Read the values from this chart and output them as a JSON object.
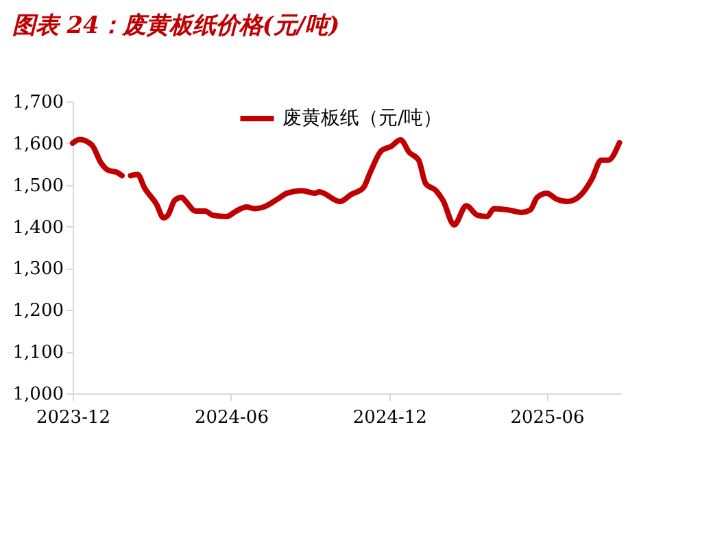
{
  "chart_data": {
    "type": "line",
    "title": "图表 24：废黄板纸价格(元/吨)",
    "x": [
      "2023-12-01",
      "2023-12-09",
      "2023-12-23",
      "2024-01-03",
      "2024-01-11",
      "2024-01-21",
      "2024-01-27",
      "2024-02-01",
      "2024-02-06",
      "2024-02-14",
      "2024-02-22",
      "2024-03-07",
      "2024-03-15",
      "2024-03-20",
      "2024-03-28",
      "2024-04-05",
      "2024-04-10",
      "2024-04-21",
      "2024-05-02",
      "2024-05-11",
      "2024-05-27",
      "2024-06-07",
      "2024-06-19",
      "2024-06-28",
      "2024-07-09",
      "2024-07-25",
      "2024-08-05",
      "2024-08-22",
      "2024-09-06",
      "2024-09-11",
      "2024-10-05",
      "2024-10-18",
      "2024-11-01",
      "2024-11-09",
      "2024-11-22",
      "2024-12-03",
      "2024-12-14",
      "2024-12-24",
      "2025-01-04",
      "2025-01-12",
      "2025-01-24",
      "2025-02-01",
      "2025-02-14",
      "2025-02-28",
      "2025-03-13",
      "2025-03-24",
      "2025-04-01",
      "2025-04-17",
      "2025-05-03",
      "2025-05-13",
      "2025-05-21",
      "2025-06-01",
      "2025-06-12",
      "2025-06-25",
      "2025-07-11",
      "2025-07-23",
      "2025-08-03",
      "2025-08-11",
      "2025-08-24"
    ],
    "series": [
      {
        "name": "废黄板纸（元/吨）",
        "color": "#c00000",
        "values": [
          1600,
          1609,
          1596,
          1552,
          1535,
          1530,
          1522,
          null,
          1522,
          1525,
          1493,
          1453,
          1421,
          1427,
          1463,
          1470,
          1460,
          1437,
          1437,
          1427,
          1424,
          1437,
          1447,
          1443,
          1447,
          1466,
          1480,
          1486,
          1480,
          1483,
          1460,
          1477,
          1493,
          1530,
          1582,
          1592,
          1608,
          1578,
          1559,
          1503,
          1486,
          1463,
          1404,
          1450,
          1427,
          1424,
          1443,
          1440,
          1434,
          1440,
          1470,
          1480,
          1466,
          1460,
          1477,
          1513,
          1559,
          1559,
          1601
        ]
      }
    ],
    "xlim": [
      "2023-12-01",
      "2025-08-26"
    ],
    "xticks": [
      {
        "value": "2023-12-01",
        "label": "2023-12"
      },
      {
        "value": "2024-06-01",
        "label": "2024-06"
      },
      {
        "value": "2024-12-01",
        "label": "2024-12"
      },
      {
        "value": "2025-06-01",
        "label": "2025-06"
      }
    ],
    "ylim": [
      1000,
      1700
    ],
    "yticks": [
      {
        "value": 1000,
        "label": "1,000"
      },
      {
        "value": 1100,
        "label": "1,100"
      },
      {
        "value": 1200,
        "label": "1,200"
      },
      {
        "value": 1300,
        "label": "1,300"
      },
      {
        "value": 1400,
        "label": "1,400"
      },
      {
        "value": 1500,
        "label": "1,500"
      },
      {
        "value": 1600,
        "label": "1,600"
      },
      {
        "value": 1700,
        "label": "1,700"
      }
    ],
    "grid": false,
    "legend": "top",
    "marker": "none",
    "line_style": "solid"
  }
}
